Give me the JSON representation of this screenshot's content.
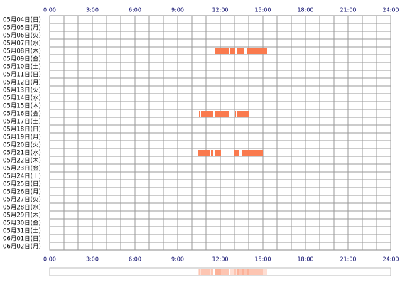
{
  "chart_data": {
    "type": "timeline",
    "categories": [
      "05月04日(日)",
      "05月05日(月)",
      "05月06日(火)",
      "05月07日(水)",
      "05月08日(木)",
      "05月09日(金)",
      "05月10日(土)",
      "05月11日(日)",
      "05月12日(月)",
      "05月13日(火)",
      "05月14日(水)",
      "05月15日(木)",
      "05月16日(金)",
      "05月17日(土)",
      "05月18日(日)",
      "05月19日(月)",
      "05月20日(火)",
      "05月21日(水)",
      "05月22日(木)",
      "05月23日(金)",
      "05月24日(土)",
      "05月25日(日)",
      "05月26日(月)",
      "05月27日(火)",
      "05月28日(水)",
      "05月29日(木)",
      "05月30日(金)",
      "05月31日(土)",
      "06月01日(日)",
      "06月02日(月)"
    ],
    "values": [
      [],
      [],
      [],
      [],
      [
        [
          11.65,
          12.6
        ],
        [
          12.7,
          13.05
        ],
        [
          13.15,
          13.65
        ],
        [
          13.9,
          15.3
        ]
      ],
      [],
      [],
      [],
      [],
      [],
      [],
      [],
      [
        [
          10.5,
          10.55
        ],
        [
          10.65,
          11.5
        ],
        [
          11.65,
          12.65
        ],
        [
          13.05,
          13.1
        ],
        [
          13.15,
          14.0
        ]
      ],
      [],
      [],
      [],
      [],
      [
        [
          10.45,
          11.25
        ],
        [
          11.35,
          11.5
        ],
        [
          11.65,
          12.05
        ],
        [
          13.0,
          13.35
        ],
        [
          13.5,
          15.0
        ]
      ],
      [],
      [],
      [],
      [],
      [],
      [],
      [],
      [],
      [],
      [],
      [],
      []
    ],
    "color": "#fa7a4e",
    "xlim": [
      0,
      24
    ],
    "xticks": [
      {
        "value": 0,
        "label": "0:00"
      },
      {
        "value": 3,
        "label": "3:00"
      },
      {
        "value": 6,
        "label": "6:00"
      },
      {
        "value": 9,
        "label": "9:00"
      },
      {
        "value": 12,
        "label": "12:00"
      },
      {
        "value": 15,
        "label": "15:00"
      },
      {
        "value": 18,
        "label": "18:00"
      },
      {
        "value": 21,
        "label": "21:00"
      },
      {
        "value": 24,
        "label": "24:00"
      }
    ],
    "grid": true
  }
}
